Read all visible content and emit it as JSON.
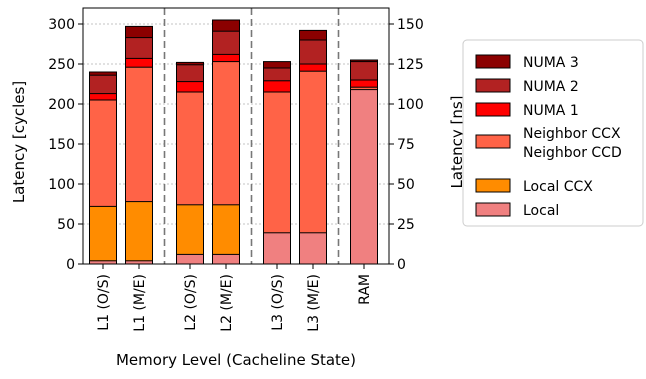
{
  "chart_data": {
    "type": "bar",
    "stacked": "overlapping",
    "categories": [
      "L1 (O/S)",
      "L1 (M/E)",
      "L2 (O/S)",
      "L2 (M/E)",
      "L3 (O/S)",
      "L3 (M/E)",
      "RAM"
    ],
    "series": [
      {
        "name": "NUMA 3",
        "color": "#8b0000",
        "values": [
          240,
          297,
          252,
          305,
          253,
          292,
          255
        ]
      },
      {
        "name": "NUMA 2",
        "color": "#b22222",
        "values": [
          236,
          283,
          249,
          291,
          245,
          280,
          253
        ]
      },
      {
        "name": "NUMA 1",
        "color": "#ff0000",
        "values": [
          213,
          257,
          228,
          262,
          229,
          250,
          230
        ]
      },
      {
        "name": "Neighbor CCX\nNeighbor CCD",
        "color": "#ff6347",
        "values": [
          205,
          246,
          215,
          253,
          215,
          241,
          221
        ]
      },
      {
        "name": "Local CCX",
        "color": "#ff8c00",
        "values": [
          72,
          78,
          74,
          74,
          null,
          null,
          null
        ]
      },
      {
        "name": "Local",
        "color": "#f08080",
        "values": [
          4,
          4,
          12,
          12,
          39,
          39,
          218
        ]
      }
    ],
    "xlabel": "Memory Level (Cacheline State)",
    "ylabel": "Latency [cycles]",
    "ylabel_right": "Latency [ns]",
    "ylim": [
      0,
      320
    ],
    "yticks": [
      0,
      50,
      100,
      150,
      200,
      250,
      300
    ],
    "ylim_right": [
      0,
      160
    ],
    "yticks_right": [
      0,
      25,
      50,
      75,
      100,
      125,
      150
    ],
    "group_separators_after": [
      "L1 (M/E)",
      "L2 (M/E)",
      "L3 (M/E)"
    ],
    "grid": "horizontal dotted",
    "legend_position": "right"
  }
}
